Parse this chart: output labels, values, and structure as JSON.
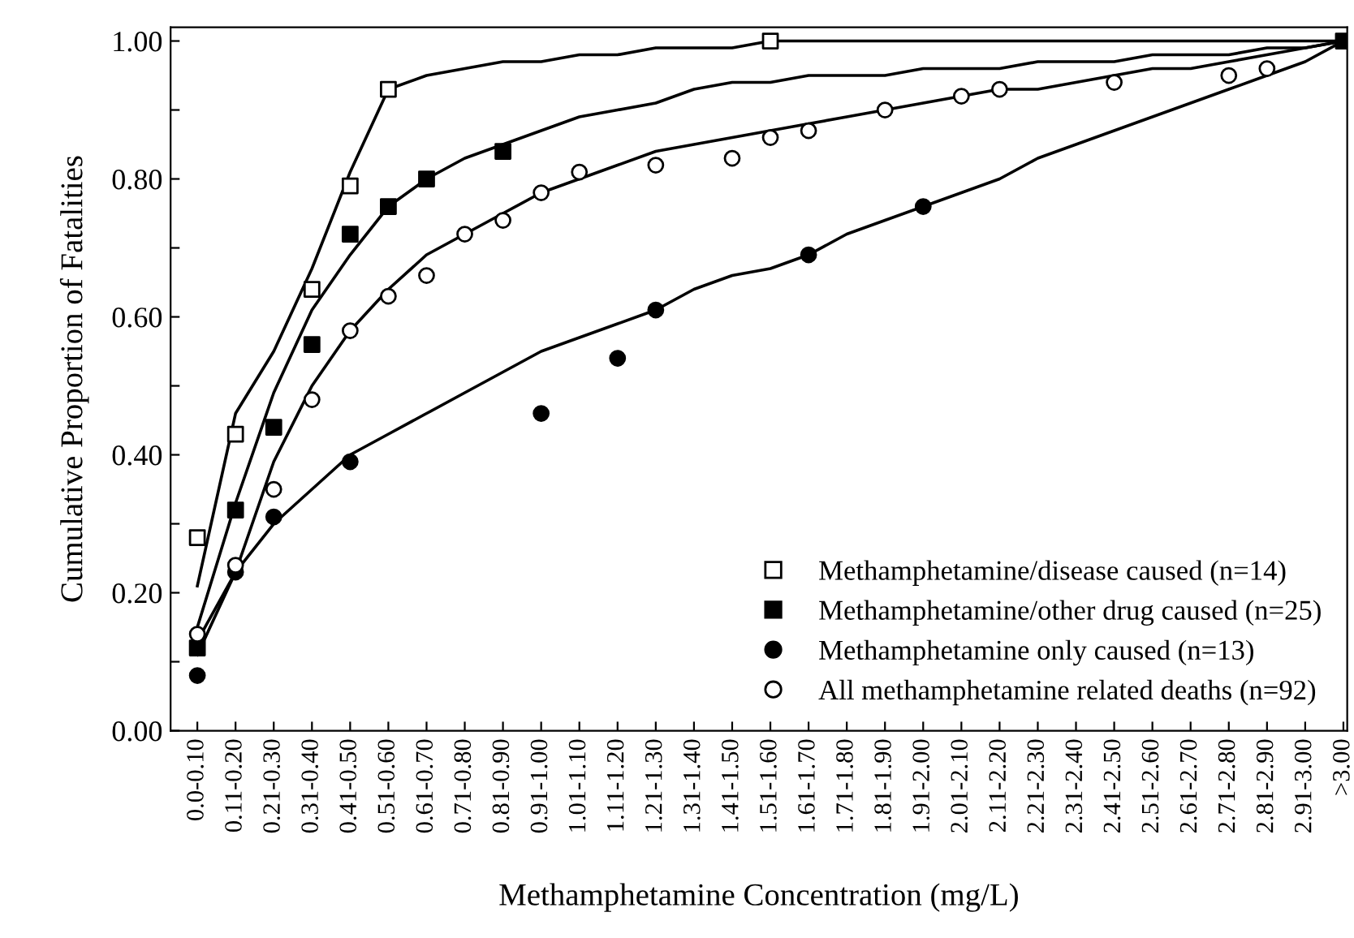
{
  "chart_data": {
    "type": "scatter",
    "xlabel": "Methamphetamine Concentration (mg/L)",
    "ylabel": "Cumulative Proportion of Fatalities",
    "categories": [
      "0.0-0.10",
      "0.11-0.20",
      "0.21-0.30",
      "0.31-0.40",
      "0.41-0.50",
      "0.51-0.60",
      "0.61-0.70",
      "0.71-0.80",
      "0.81-0.90",
      "0.91-1.00",
      "1.01-1.10",
      "1.11-1.20",
      "1.21-1.30",
      "1.31-1.40",
      "1.41-1.50",
      "1.51-1.60",
      "1.61-1.70",
      "1.71-1.80",
      "1.81-1.90",
      "1.91-2.00",
      "2.01-2.10",
      "2.11-2.20",
      "2.21-2.30",
      "2.31-2.40",
      "2.41-2.50",
      "2.51-2.60",
      "2.61-2.70",
      "2.71-2.80",
      "2.81-2.90",
      "2.91-3.00",
      ">3.00"
    ],
    "ylim": [
      0,
      1.02
    ],
    "yticks": [
      {
        "value": 0,
        "label": "0.00"
      },
      {
        "value": 0.1,
        "label": null
      },
      {
        "value": 0.2,
        "label": "0.20"
      },
      {
        "value": 0.3,
        "label": null
      },
      {
        "value": 0.4,
        "label": "0.40"
      },
      {
        "value": 0.5,
        "label": null
      },
      {
        "value": 0.6,
        "label": "0.60"
      },
      {
        "value": 0.7,
        "label": null
      },
      {
        "value": 0.8,
        "label": "0.80"
      },
      {
        "value": 0.9,
        "label": null
      },
      {
        "value": 1.0,
        "label": "1.00"
      }
    ],
    "grid": false,
    "legend": "bottom right",
    "series": [
      {
        "type": "line",
        "color": "#000000",
        "marker": "none",
        "line_style": "solid",
        "values": [
          0.21,
          0.46,
          0.55,
          0.67,
          0.81,
          0.93,
          0.95,
          0.96,
          0.97,
          0.97,
          0.98,
          0.98,
          0.99,
          0.99,
          0.99,
          1.0,
          1.0,
          1.0,
          1.0,
          1.0,
          1.0,
          1.0,
          1.0,
          1.0,
          1.0,
          1.0,
          1.0,
          1.0,
          1.0,
          1.0,
          1.0
        ]
      },
      {
        "type": "line",
        "color": "#000000",
        "marker": "none",
        "line_style": "solid",
        "values": [
          0.15,
          0.33,
          0.49,
          0.61,
          0.69,
          0.76,
          0.8,
          0.83,
          0.85,
          0.87,
          0.89,
          0.9,
          0.91,
          0.93,
          0.94,
          0.94,
          0.95,
          0.95,
          0.95,
          0.96,
          0.96,
          0.96,
          0.97,
          0.97,
          0.97,
          0.98,
          0.98,
          0.98,
          0.99,
          0.99,
          1.0
        ]
      },
      {
        "type": "line",
        "color": "#000000",
        "marker": "none",
        "line_style": "solid",
        "values": [
          0.11,
          0.23,
          0.3,
          0.35,
          0.4,
          0.43,
          0.46,
          0.49,
          0.52,
          0.55,
          0.57,
          0.59,
          0.61,
          0.64,
          0.66,
          0.67,
          0.69,
          0.72,
          0.74,
          0.76,
          0.78,
          0.8,
          0.83,
          0.85,
          0.87,
          0.89,
          0.91,
          0.93,
          0.95,
          0.97,
          1.0
        ]
      },
      {
        "type": "line",
        "color": "#000000",
        "marker": "none",
        "line_style": "solid",
        "values": [
          0.13,
          0.23,
          0.39,
          0.5,
          0.58,
          0.64,
          0.69,
          0.72,
          0.75,
          0.78,
          0.8,
          0.82,
          0.84,
          0.85,
          0.86,
          0.87,
          0.88,
          0.89,
          0.9,
          0.91,
          0.92,
          0.93,
          0.93,
          0.94,
          0.95,
          0.96,
          0.96,
          0.97,
          0.98,
          0.99,
          1.0
        ]
      },
      {
        "name": "Methamphetamine/disease caused (n=14)",
        "color": "#ffffff",
        "marker": "square",
        "values": [
          0.28,
          0.43,
          null,
          0.64,
          0.79,
          0.93,
          null,
          null,
          null,
          null,
          null,
          null,
          null,
          null,
          null,
          1.0,
          null,
          null,
          null,
          null,
          null,
          null,
          null,
          null,
          null,
          null,
          null,
          null,
          null,
          null,
          null
        ]
      },
      {
        "name": "Methamphetamine/other drug caused (n=25)",
        "color": "#000000",
        "marker": "square",
        "values": [
          0.12,
          0.32,
          0.44,
          0.56,
          0.72,
          0.76,
          0.8,
          null,
          0.84,
          null,
          null,
          null,
          null,
          null,
          null,
          null,
          null,
          null,
          null,
          null,
          null,
          null,
          null,
          null,
          null,
          null,
          null,
          null,
          null,
          null,
          1.0
        ]
      },
      {
        "name": "Methamphetamine only caused (n=13)",
        "color": "#000000",
        "marker": "circle",
        "values": [
          0.08,
          0.23,
          0.31,
          null,
          0.39,
          null,
          null,
          null,
          null,
          0.46,
          null,
          0.54,
          0.61,
          null,
          null,
          null,
          0.69,
          null,
          null,
          0.76,
          null,
          null,
          null,
          null,
          null,
          null,
          null,
          null,
          null,
          null,
          null
        ]
      },
      {
        "name": "All methamphetamine related deaths (n=92)",
        "color": "#ffffff",
        "marker": "circle",
        "values": [
          0.14,
          0.24,
          0.35,
          0.48,
          0.58,
          0.63,
          0.66,
          0.72,
          0.74,
          0.78,
          0.81,
          null,
          0.82,
          null,
          0.83,
          0.86,
          0.87,
          null,
          0.9,
          null,
          0.92,
          0.93,
          null,
          null,
          0.94,
          null,
          null,
          0.95,
          0.96,
          null,
          null
        ]
      }
    ]
  }
}
